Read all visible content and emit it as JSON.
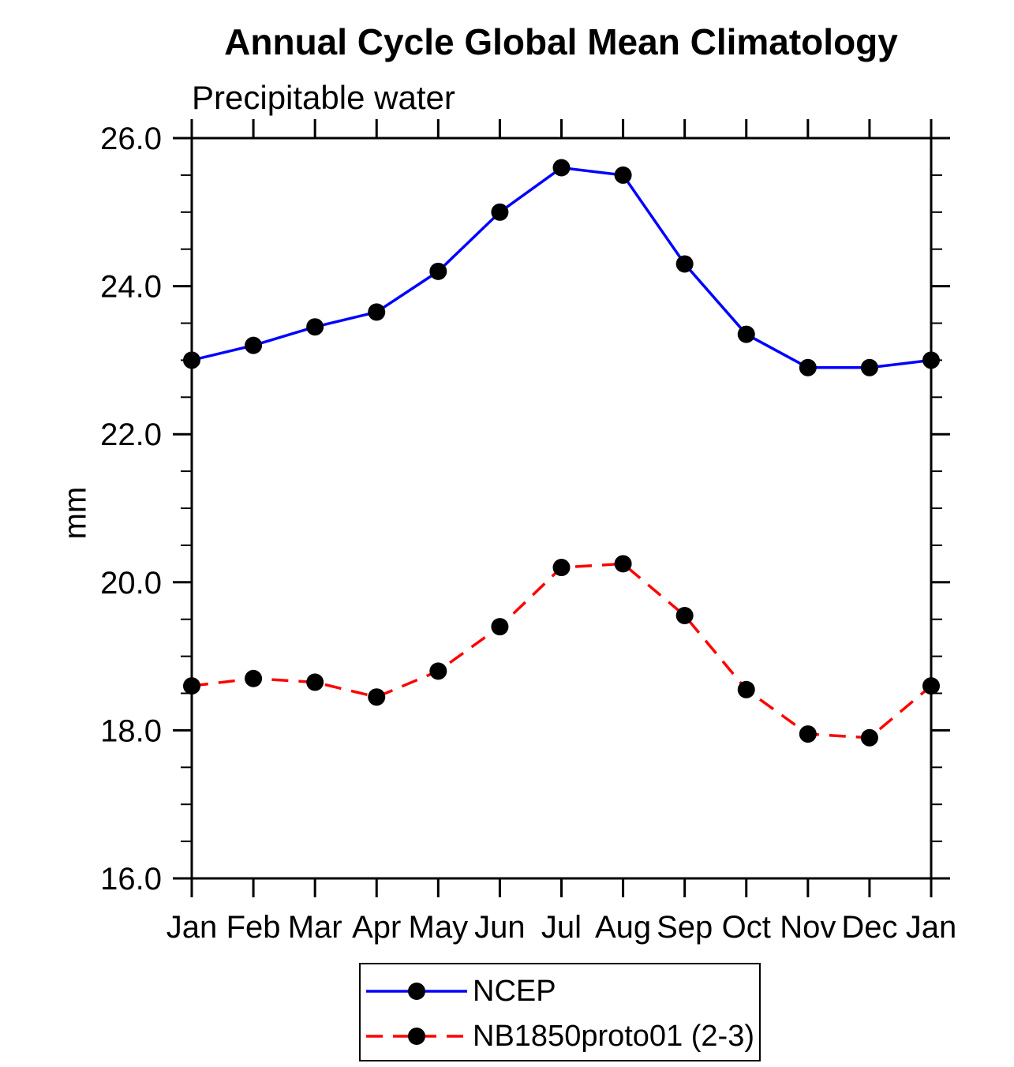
{
  "chart_data": {
    "type": "line",
    "title": "Annual Cycle Global Mean Climatology",
    "subtitle": "Precipitable water",
    "ylabel": "mm",
    "xlabel": "",
    "categories": [
      "Jan",
      "Feb",
      "Mar",
      "Apr",
      "May",
      "Jun",
      "Jul",
      "Aug",
      "Sep",
      "Oct",
      "Nov",
      "Dec",
      "Jan"
    ],
    "series": [
      {
        "name": "NCEP",
        "color": "#0000ff",
        "line_style": "solid",
        "marker": "filled-circle",
        "marker_color": "#000000",
        "values": [
          23.0,
          23.2,
          23.45,
          23.65,
          24.2,
          25.0,
          25.6,
          25.5,
          24.3,
          23.35,
          22.9,
          22.9,
          23.0
        ]
      },
      {
        "name": "NB1850proto01 (2-3)",
        "color": "#ff0000",
        "line_style": "dashed",
        "marker": "filled-circle",
        "marker_color": "#000000",
        "values": [
          18.6,
          18.7,
          18.65,
          18.45,
          18.8,
          19.4,
          20.2,
          20.25,
          19.55,
          18.55,
          17.95,
          17.9,
          18.6
        ]
      }
    ],
    "ylim": [
      16.0,
      26.0
    ],
    "y_major_ticks": [
      16.0,
      18.0,
      20.0,
      22.0,
      24.0,
      26.0
    ],
    "y_tick_labels": [
      "16.0",
      "18.0",
      "20.0",
      "22.0",
      "24.0",
      "26.0"
    ],
    "y_minor_step": 0.5,
    "grid": false,
    "legend_position": "bottom-center",
    "frame_color": "#000000",
    "background_color": "#ffffff"
  }
}
